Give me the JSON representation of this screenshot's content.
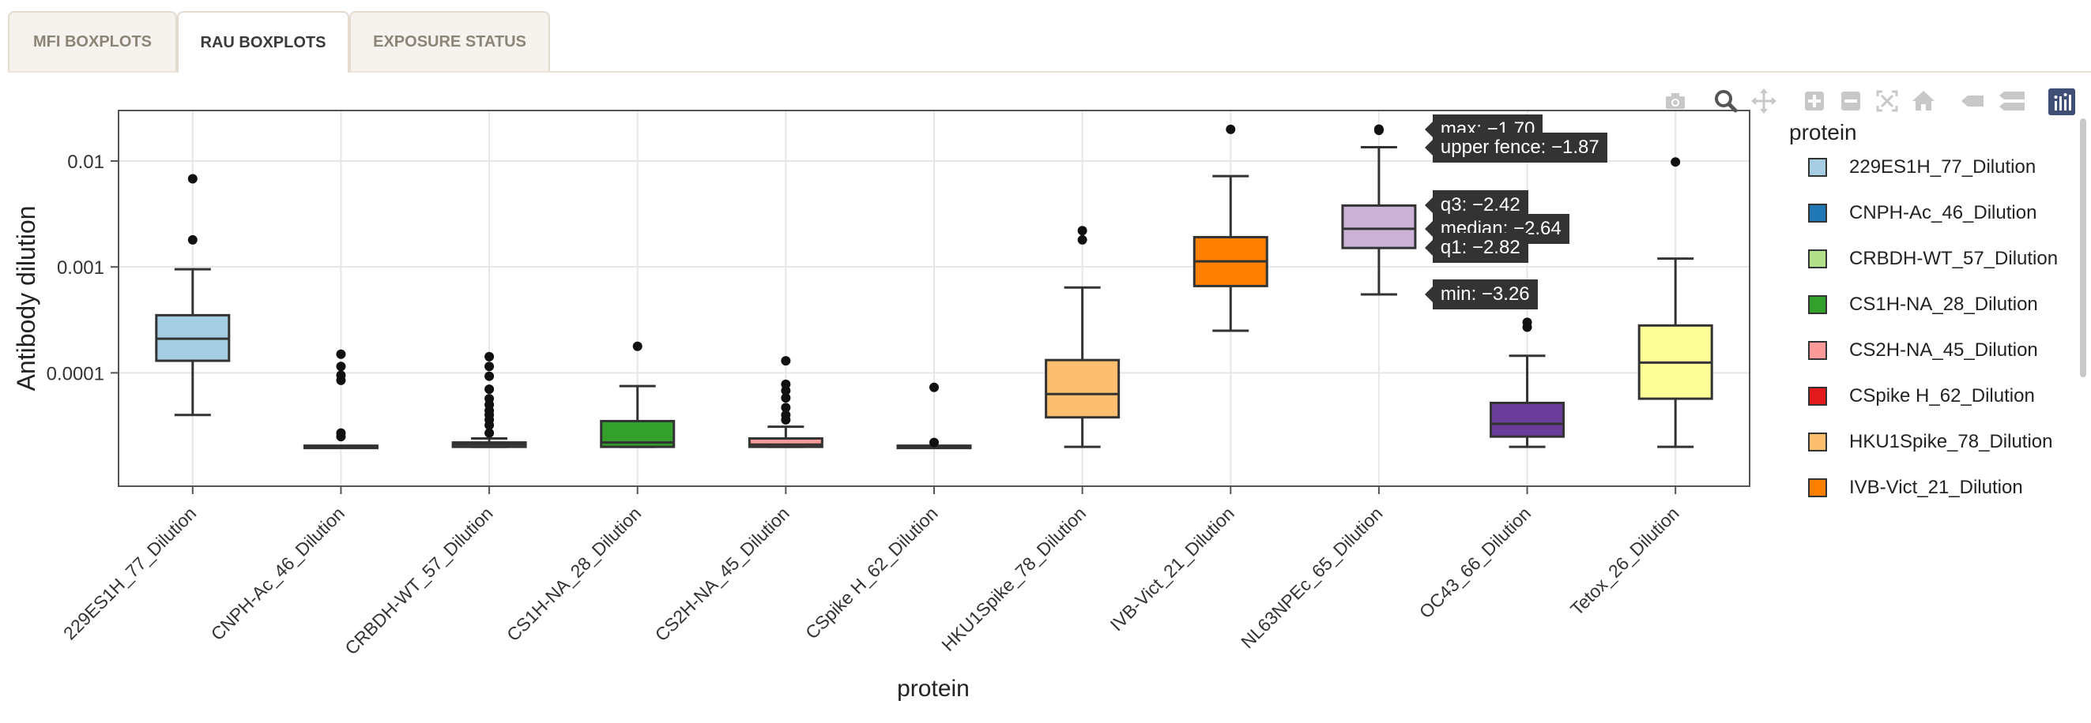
{
  "tabs": [
    {
      "label": "MFI BOXPLOTS",
      "active": false
    },
    {
      "label": "RAU BOXPLOTS",
      "active": true
    },
    {
      "label": "EXPOSURE STATUS",
      "active": false
    }
  ],
  "toolbar": [
    "camera-icon",
    "zoom-icon",
    "pan-icon",
    "zoom-in-icon",
    "zoom-out-icon",
    "autoscale-icon",
    "home-icon",
    "hover-closest-icon",
    "hover-compare-icon",
    "plotly-logo-icon"
  ],
  "legend": {
    "title": "protein",
    "items": [
      {
        "label": "229ES1H_77_Dilution",
        "color": "#a6cee3"
      },
      {
        "label": "CNPH-Ac_46_Dilution",
        "color": "#1f78b4"
      },
      {
        "label": "CRBDH-WT_57_Dilution",
        "color": "#b2df8a"
      },
      {
        "label": "CS1H-NA_28_Dilution",
        "color": "#33a02c"
      },
      {
        "label": "CS2H-NA_45_Dilution",
        "color": "#fb9a99"
      },
      {
        "label": "CSpike H_62_Dilution",
        "color": "#e31a1c"
      },
      {
        "label": "HKU1Spike_78_Dilution",
        "color": "#fdbf6f"
      },
      {
        "label": "IVB-Vict_21_Dilution",
        "color": "#ff7f00"
      }
    ]
  },
  "tooltips": [
    {
      "text": "max: −1.70",
      "value": -1.7
    },
    {
      "text": "upper fence: −1.87",
      "value": -1.87
    },
    {
      "text": "q3: −2.42",
      "value": -2.42
    },
    {
      "text": "median: −2.64",
      "value": -2.64
    },
    {
      "text": "q1: −2.82",
      "value": -2.82
    },
    {
      "text": "min: −3.26",
      "value": -3.26
    }
  ],
  "chart_data": {
    "type": "box",
    "xlabel": "protein",
    "ylabel": "Antibody dilution",
    "yscale": "log",
    "ylim": [
      8.5e-06,
      0.03
    ],
    "yticks": [
      {
        "value": 0.0001,
        "label": "0.0001"
      },
      {
        "value": 0.001,
        "label": "0.001"
      },
      {
        "value": 0.01,
        "label": "0.01"
      }
    ],
    "grid": true,
    "legend_position": "right",
    "categories": [
      "229ES1H_77_Dilution",
      "CNPH-Ac_46_Dilution",
      "CRBDH-WT_57_Dilution",
      "CS1H-NA_28_Dilution",
      "CS2H-NA_45_Dilution",
      "CSpike H_62_Dilution",
      "HKU1Spike_78_Dilution",
      "IVB-Vict_21_Dilution",
      "NL63NPEc_65_Dilution",
      "OC43_66_Dilution",
      "Tetox_26_Dilution"
    ],
    "boxes": [
      {
        "name": "229ES1H_77_Dilution",
        "color": "#a6cee3",
        "lower_fence": 4e-05,
        "q1": 0.00013,
        "median": 0.00021,
        "q3": 0.00035,
        "upper_fence": 0.00095,
        "outliers": [
          0.0018,
          0.0068
        ]
      },
      {
        "name": "CNPH-Ac_46_Dilution",
        "color": "#1f78b4",
        "lower_fence": 2e-05,
        "q1": 2e-05,
        "median": 2e-05,
        "q3": 2e-05,
        "upper_fence": 2e-05,
        "outliers": [
          2.5e-05,
          2.7e-05,
          8.5e-05,
          9.5e-05,
          0.000115,
          0.00015
        ]
      },
      {
        "name": "CRBDH-WT_57_Dilution",
        "color": "#b2df8a",
        "lower_fence": 2e-05,
        "q1": 2e-05,
        "median": 2.1e-05,
        "q3": 2.2e-05,
        "upper_fence": 2.4e-05,
        "outliers": [
          2.7e-05,
          3.2e-05,
          3.6e-05,
          4e-05,
          4.4e-05,
          5e-05,
          5.7e-05,
          7e-05,
          9.3e-05,
          0.000115,
          0.000142
        ]
      },
      {
        "name": "CS1H-NA_28_Dilution",
        "color": "#33a02c",
        "lower_fence": 2e-05,
        "q1": 2e-05,
        "median": 2.2e-05,
        "q3": 3.5e-05,
        "upper_fence": 7.5e-05,
        "outliers": [
          0.000178
        ]
      },
      {
        "name": "CS2H-NA_45_Dilution",
        "color": "#fb9a99",
        "lower_fence": 2e-05,
        "q1": 2e-05,
        "median": 2.1e-05,
        "q3": 2.4e-05,
        "upper_fence": 3.1e-05,
        "outliers": [
          3.6e-05,
          4e-05,
          4.7e-05,
          5.8e-05,
          6.8e-05,
          7.8e-05,
          0.00013
        ]
      },
      {
        "name": "CSpike H_62_Dilution",
        "color": "#e31a1c",
        "lower_fence": 2e-05,
        "q1": 2e-05,
        "median": 2e-05,
        "q3": 2e-05,
        "upper_fence": 2e-05,
        "outliers": [
          2.2e-05,
          7.3e-05
        ]
      },
      {
        "name": "HKU1Spike_78_Dilution",
        "color": "#fdbf6f",
        "lower_fence": 2e-05,
        "q1": 3.8e-05,
        "median": 6.3e-05,
        "q3": 0.000132,
        "upper_fence": 0.00064,
        "outliers": [
          0.0018,
          0.0022
        ]
      },
      {
        "name": "IVB-Vict_21_Dilution",
        "color": "#ff7f00",
        "lower_fence": 0.00025,
        "q1": 0.00066,
        "median": 0.00113,
        "q3": 0.00191,
        "upper_fence": 0.0072,
        "outliers": [
          0.0199
        ]
      },
      {
        "name": "NL63NPEc_65_Dilution",
        "color": "#cab2d6",
        "lower_fence": 0.00055,
        "q1": 0.00151,
        "median": 0.00229,
        "q3": 0.0038,
        "upper_fence": 0.0135,
        "outliers": [
          0.0195,
          0.02
        ]
      },
      {
        "name": "OC43_66_Dilution",
        "color": "#6a3d9a",
        "lower_fence": 2e-05,
        "q1": 2.5e-05,
        "median": 3.3e-05,
        "q3": 5.2e-05,
        "upper_fence": 0.000145,
        "outliers": [
          0.00027,
          0.0003
        ]
      },
      {
        "name": "Tetox_26_Dilution",
        "color": "#ffff99",
        "lower_fence": 2e-05,
        "q1": 5.7e-05,
        "median": 0.000125,
        "q3": 0.00028,
        "upper_fence": 0.0012,
        "outliers": [
          0.0098
        ]
      }
    ]
  }
}
